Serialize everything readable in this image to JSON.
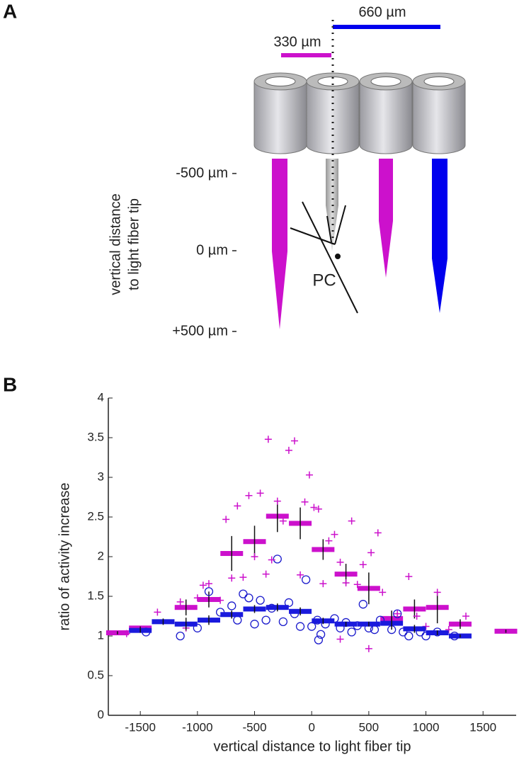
{
  "diagram": {
    "panel_label": "A",
    "scale_long": "660 µm",
    "scale_short": "330 µm",
    "depth_ticks": [
      "-500 µm",
      "0 µm",
      "+500 µm"
    ],
    "axis_label_lines": [
      "vertical distance",
      "to light fiber tip"
    ],
    "cell_label": "PC"
  },
  "chart_data": {
    "type": "scatter",
    "panel_label": "B",
    "x_label": "vertical distance to light fiber tip",
    "y_label": "ratio of activity increase",
    "xlim": [
      -1780,
      1790
    ],
    "ylim": [
      0,
      4
    ],
    "xticks": [
      -1500,
      -1000,
      -500,
      0,
      500,
      1000,
      1500
    ],
    "yticks": [
      0,
      0.5,
      1,
      1.5,
      2,
      2.5,
      3,
      3.5,
      4
    ],
    "series": [
      {
        "marker": "+",
        "color": "#cc11cc",
        "x": [
          -1620,
          -1350,
          -1150,
          -1100,
          -1000,
          -950,
          -900,
          -800,
          -750,
          -700,
          -650,
          -600,
          -550,
          -500,
          -450,
          -400,
          -380,
          -350,
          -300,
          -250,
          -200,
          -150,
          -100,
          -60,
          -20,
          20,
          60,
          100,
          150,
          200,
          250,
          300,
          350,
          400,
          450,
          520,
          580,
          620,
          750,
          850,
          920,
          1000,
          1100,
          1200,
          1350,
          500,
          250
        ],
        "values": [
          1.03,
          1.3,
          1.43,
          1.1,
          1.48,
          1.64,
          1.66,
          1.45,
          2.47,
          1.73,
          2.64,
          1.74,
          2.77,
          2.0,
          2.8,
          1.78,
          3.48,
          1.96,
          2.7,
          2.45,
          3.34,
          3.46,
          1.77,
          2.69,
          3.03,
          2.62,
          2.6,
          1.66,
          2.2,
          2.28,
          1.93,
          1.67,
          2.45,
          1.65,
          1.9,
          2.05,
          2.3,
          1.55,
          1.28,
          1.75,
          1.25,
          1.12,
          1.55,
          1.08,
          1.25,
          0.84,
          0.96
        ]
      },
      {
        "marker": "o",
        "color": "#1a1acc",
        "x": [
          -1450,
          -1150,
          -1000,
          -900,
          -800,
          -700,
          -650,
          -600,
          -550,
          -500,
          -450,
          -400,
          -350,
          -300,
          -250,
          -200,
          -150,
          -100,
          -50,
          0,
          50,
          60,
          80,
          120,
          200,
          250,
          300,
          350,
          400,
          450,
          500,
          550,
          600,
          700,
          750,
          800,
          850,
          950,
          1000,
          1100,
          1250
        ],
        "values": [
          1.05,
          1.0,
          1.1,
          1.56,
          1.3,
          1.38,
          1.2,
          1.53,
          1.48,
          1.15,
          1.45,
          1.2,
          1.35,
          1.97,
          1.18,
          1.42,
          1.28,
          1.12,
          1.71,
          1.12,
          1.2,
          0.95,
          1.02,
          1.15,
          1.22,
          1.1,
          1.17,
          1.05,
          1.13,
          1.4,
          1.1,
          1.08,
          1.2,
          1.08,
          1.28,
          1.05,
          1.0,
          1.05,
          1.0,
          1.05,
          1.0
        ]
      },
      {
        "marker": "bar",
        "color": "#cc11cc",
        "x": [
          -1700,
          -1500,
          -1100,
          -900,
          -700,
          -500,
          -300,
          -100,
          100,
          300,
          500,
          700,
          900,
          1100,
          1300,
          1700
        ],
        "values": [
          1.04,
          1.1,
          1.36,
          1.46,
          2.04,
          2.19,
          2.51,
          2.42,
          2.09,
          1.78,
          1.6,
          1.22,
          1.34,
          1.36,
          1.15,
          1.06
        ],
        "errors": [
          0.02,
          0.02,
          0.1,
          0.1,
          0.22,
          0.2,
          0.2,
          0.2,
          0.13,
          0.13,
          0.2,
          0.1,
          0.12,
          0.2,
          0.06,
          0.02
        ]
      },
      {
        "marker": "bar",
        "color": "#1a1add",
        "x": [
          -1500,
          -1300,
          -1100,
          -900,
          -700,
          -500,
          -300,
          -100,
          100,
          300,
          500,
          700,
          900,
          1100,
          1300
        ],
        "values": [
          1.07,
          1.18,
          1.15,
          1.2,
          1.27,
          1.34,
          1.36,
          1.31,
          1.19,
          1.15,
          1.15,
          1.16,
          1.09,
          1.04,
          1.0
        ],
        "errors": [
          0.03,
          0.04,
          0.08,
          0.06,
          0.05,
          0.05,
          0.05,
          0.05,
          0.04,
          0.03,
          0.03,
          0.08,
          0.05,
          0.03,
          0.02
        ]
      }
    ]
  }
}
